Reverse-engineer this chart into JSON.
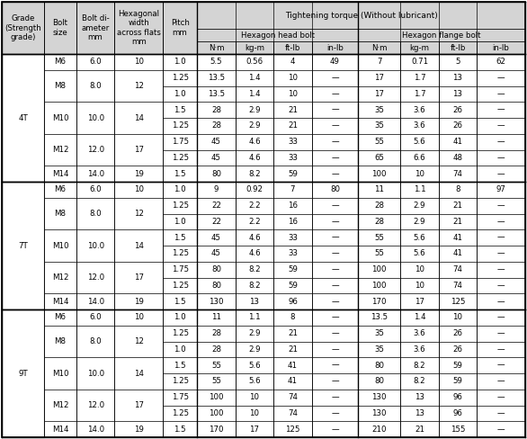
{
  "rows": [
    [
      "4T",
      "M6",
      "6.0",
      "10",
      "1.0",
      "5.5",
      "0.56",
      "4",
      "49",
      "7",
      "0.71",
      "5",
      "62"
    ],
    [
      "",
      "M8",
      "8.0",
      "12",
      "1.25",
      "13.5",
      "1.4",
      "10",
      "—",
      "17",
      "1.7",
      "13",
      "—"
    ],
    [
      "",
      "",
      "",
      "",
      "1.0",
      "13.5",
      "1.4",
      "10",
      "—",
      "17",
      "1.7",
      "13",
      "—"
    ],
    [
      "",
      "M10",
      "10.0",
      "14",
      "1.5",
      "28",
      "2.9",
      "21",
      "—",
      "35",
      "3.6",
      "26",
      "—"
    ],
    [
      "",
      "",
      "",
      "",
      "1.25",
      "28",
      "2.9",
      "21",
      "—",
      "35",
      "3.6",
      "26",
      "—"
    ],
    [
      "",
      "M12",
      "12.0",
      "17",
      "1.75",
      "45",
      "4.6",
      "33",
      "—",
      "55",
      "5.6",
      "41",
      "—"
    ],
    [
      "",
      "",
      "",
      "",
      "1.25",
      "45",
      "4.6",
      "33",
      "—",
      "65",
      "6.6",
      "48",
      "—"
    ],
    [
      "",
      "M14",
      "14.0",
      "19",
      "1.5",
      "80",
      "8.2",
      "59",
      "—",
      "100",
      "10",
      "74",
      "—"
    ],
    [
      "7T",
      "M6",
      "6.0",
      "10",
      "1.0",
      "9",
      "0.92",
      "7",
      "80",
      "11",
      "1.1",
      "8",
      "97"
    ],
    [
      "",
      "M8",
      "8.0",
      "12",
      "1.25",
      "22",
      "2.2",
      "16",
      "—",
      "28",
      "2.9",
      "21",
      "—"
    ],
    [
      "",
      "",
      "",
      "",
      "1.0",
      "22",
      "2.2",
      "16",
      "—",
      "28",
      "2.9",
      "21",
      "—"
    ],
    [
      "",
      "M10",
      "10.0",
      "14",
      "1.5",
      "45",
      "4.6",
      "33",
      "—",
      "55",
      "5.6",
      "41",
      "—"
    ],
    [
      "",
      "",
      "",
      "",
      "1.25",
      "45",
      "4.6",
      "33",
      "—",
      "55",
      "5.6",
      "41",
      "—"
    ],
    [
      "",
      "M12",
      "12.0",
      "17",
      "1.75",
      "80",
      "8.2",
      "59",
      "—",
      "100",
      "10",
      "74",
      "—"
    ],
    [
      "",
      "",
      "",
      "",
      "1.25",
      "80",
      "8.2",
      "59",
      "—",
      "100",
      "10",
      "74",
      "—"
    ],
    [
      "",
      "M14",
      "14.0",
      "19",
      "1.5",
      "130",
      "13",
      "96",
      "—",
      "170",
      "17",
      "125",
      "—"
    ],
    [
      "9T",
      "M6",
      "6.0",
      "10",
      "1.0",
      "11",
      "1.1",
      "8",
      "—",
      "13.5",
      "1.4",
      "10",
      "—"
    ],
    [
      "",
      "M8",
      "8.0",
      "12",
      "1.25",
      "28",
      "2.9",
      "21",
      "—",
      "35",
      "3.6",
      "26",
      "—"
    ],
    [
      "",
      "",
      "",
      "",
      "1.0",
      "28",
      "2.9",
      "21",
      "—",
      "35",
      "3.6",
      "26",
      "—"
    ],
    [
      "",
      "M10",
      "10.0",
      "14",
      "1.5",
      "55",
      "5.6",
      "41",
      "—",
      "80",
      "8.2",
      "59",
      "—"
    ],
    [
      "",
      "",
      "",
      "",
      "1.25",
      "55",
      "5.6",
      "41",
      "—",
      "80",
      "8.2",
      "59",
      "—"
    ],
    [
      "",
      "M12",
      "12.0",
      "17",
      "1.75",
      "100",
      "10",
      "74",
      "—",
      "130",
      "13",
      "96",
      "—"
    ],
    [
      "",
      "",
      "",
      "",
      "1.25",
      "100",
      "10",
      "74",
      "—",
      "130",
      "13",
      "96",
      "—"
    ],
    [
      "",
      "M14",
      "14.0",
      "19",
      "1.5",
      "170",
      "17",
      "125",
      "—",
      "210",
      "21",
      "155",
      "—"
    ]
  ],
  "grade_groups": [
    [
      "4T",
      0,
      7
    ],
    [
      "7T",
      8,
      15
    ],
    [
      "9T",
      16,
      23
    ]
  ],
  "bolt_groups": [
    [
      "M6",
      0,
      0
    ],
    [
      "M8",
      1,
      2
    ],
    [
      "M10",
      3,
      4
    ],
    [
      "M12",
      5,
      6
    ],
    [
      "M14",
      7,
      7
    ],
    [
      "M6",
      8,
      8
    ],
    [
      "M8",
      9,
      10
    ],
    [
      "M10",
      11,
      12
    ],
    [
      "M12",
      13,
      14
    ],
    [
      "M14",
      15,
      15
    ],
    [
      "M6",
      16,
      16
    ],
    [
      "M8",
      17,
      18
    ],
    [
      "M10",
      19,
      20
    ],
    [
      "M12",
      21,
      22
    ],
    [
      "M14",
      23,
      23
    ]
  ],
  "col_labels": [
    "Grade\n(Strength\ngrade)",
    "Bolt\nsize",
    "Bolt di-\nameter\nmm",
    "Hexagonal\nwidth\nacross flats\nmm",
    "Pitch\nmm"
  ],
  "units": [
    "N·m",
    "kg-m",
    "ft-lb",
    "in-lb",
    "N·m",
    "kg-m",
    "ft-lb",
    "in-lb"
  ],
  "torque_title": "Tightening torque (Without lubricant)",
  "head_label": "Hexagon head bolt",
  "flange_label": "Hexagon flange bolt",
  "bg": "#ffffff",
  "hdr_bg": "#d4d4d4",
  "line_color": "#000000",
  "fs": 6.2,
  "fs_hdr": 6.5
}
